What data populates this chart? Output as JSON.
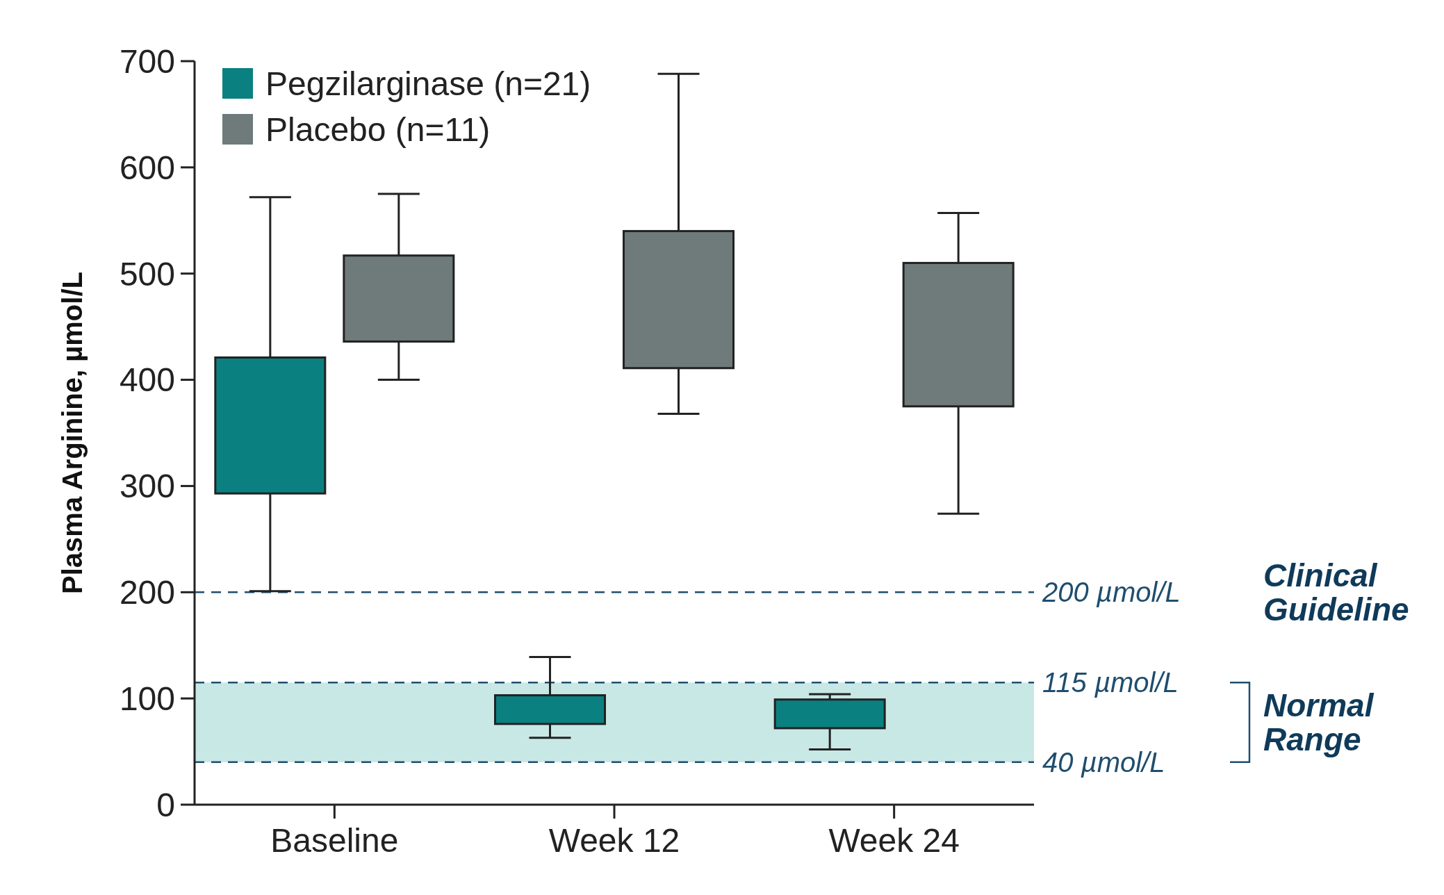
{
  "chart_data": {
    "type": "box",
    "ylabel": "Plasma Arginine, µmol/L",
    "categories": [
      "Baseline",
      "Week 12",
      "Week 24"
    ],
    "series": [
      {
        "name": "Pegzilarginase (n=21)",
        "color": "#0a8080",
        "boxes": [
          {
            "low": 201,
            "q1": 293,
            "q3": 421,
            "high": 572
          },
          {
            "low": 63,
            "q1": 76,
            "q3": 103,
            "high": 139
          },
          {
            "low": 52,
            "q1": 72,
            "q3": 99,
            "high": 104
          }
        ]
      },
      {
        "name": "Placebo (n=11)",
        "color": "#6e7b7a",
        "boxes": [
          {
            "low": 400,
            "q1": 436,
            "q3": 517,
            "high": 575
          },
          {
            "low": 368,
            "q1": 411,
            "q3": 540,
            "high": 688
          },
          {
            "low": 274,
            "q1": 375,
            "q3": 510,
            "high": 557
          }
        ]
      }
    ],
    "ylim": [
      0,
      700
    ],
    "yticks": [
      0,
      100,
      200,
      300,
      400,
      500,
      600,
      700
    ],
    "ref_lines": [
      {
        "axis": "y",
        "value": 200,
        "label": "200 µmol/L",
        "color": "#1f4e6e",
        "line_style": "dashed"
      },
      {
        "axis": "y",
        "value": 115,
        "label": "115 µmol/L",
        "color": "#1f4e6e",
        "line_style": "dashed"
      },
      {
        "axis": "y",
        "value": 40,
        "label": "40 µmol/L",
        "color": "#1f4e6e",
        "line_style": "dashed"
      }
    ],
    "bands": [
      {
        "axis": "y",
        "from": 40,
        "to": 115,
        "color": "#c8e8e6"
      }
    ],
    "annotations": [
      "Clinical Guideline",
      "Normal Range"
    ],
    "legend": "top left"
  }
}
